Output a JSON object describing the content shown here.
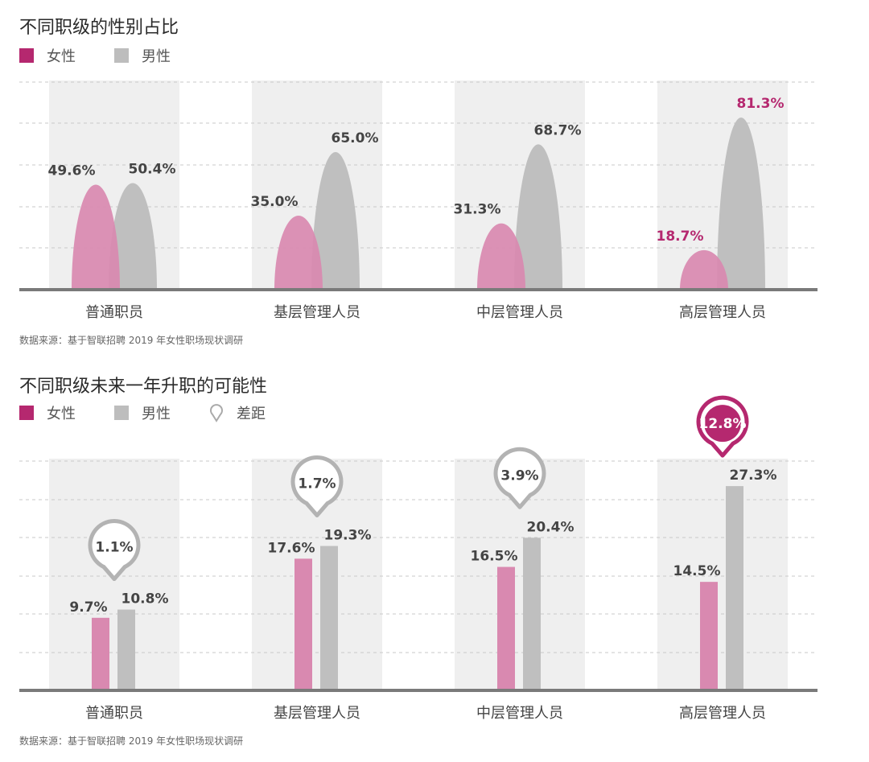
{
  "colors": {
    "female": "#b5286f",
    "female_fill": "#d989b0",
    "male": "#bdbdbd",
    "male_fill": "#bfbfbf",
    "band": "#efefef",
    "baseline": "#7a7a7a",
    "highlight": "#b5286f"
  },
  "legend": {
    "female": "女性",
    "male": "男性",
    "gap": "差距"
  },
  "chart_data": [
    {
      "type": "bar",
      "title": "不同职级的性别占比",
      "categories": [
        "普通职员",
        "基层管理人员",
        "中层管理人员",
        "高层管理人员"
      ],
      "series": [
        {
          "name": "女性",
          "values": [
            49.6,
            35.0,
            31.3,
            18.7
          ],
          "labels": [
            "49.6%",
            "35.0%",
            "31.3%",
            "18.7%"
          ]
        },
        {
          "name": "男性",
          "values": [
            50.4,
            65.0,
            68.7,
            81.3
          ],
          "labels": [
            "50.4%",
            "65.0%",
            "68.7%",
            "81.3%"
          ]
        }
      ],
      "highlight_category": "高层管理人员",
      "source": "数据来源：基于智联招聘 2019 年女性职场现状调研"
    },
    {
      "type": "bar",
      "title": "不同职级未来一年升职的可能性",
      "categories": [
        "普通职员",
        "基层管理人员",
        "中层管理人员",
        "高层管理人员"
      ],
      "series": [
        {
          "name": "女性",
          "values": [
            9.7,
            17.6,
            16.5,
            14.5
          ],
          "labels": [
            "9.7%",
            "17.6%",
            "16.5%",
            "14.5%"
          ]
        },
        {
          "name": "男性",
          "values": [
            10.8,
            19.3,
            20.4,
            27.3
          ],
          "labels": [
            "10.8%",
            "19.3%",
            "20.4%",
            "27.3%"
          ]
        }
      ],
      "gaps": [
        "1.1%",
        "1.7%",
        "3.9%",
        "12.8%"
      ],
      "highlight_category": "高层管理人员",
      "source": "数据来源：基于智联招聘 2019 年女性职场现状调研"
    }
  ]
}
